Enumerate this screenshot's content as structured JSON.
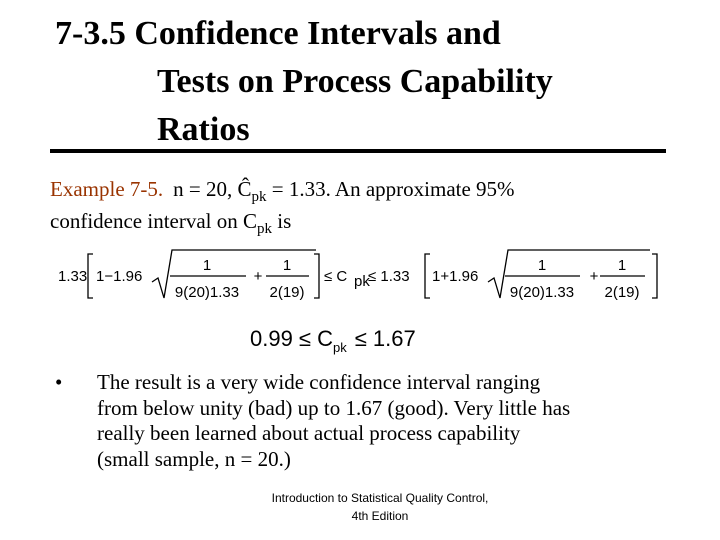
{
  "title": {
    "line1": "7-3.5 Confidence Intervals and",
    "line2": "Tests on Process Capability",
    "line3": "Ratios"
  },
  "example": {
    "label": "Example 7-5.",
    "line1_a": "n = 20, Ĉ",
    "line1_sub": "pk",
    "line1_b": " = 1.33.  An approximate 95%",
    "line2_a": "confidence interval on C",
    "line2_sub": "pk",
    "line2_b": " is"
  },
  "formula": {
    "coef": "1.33",
    "left_term": "1−1.96",
    "num1": "1",
    "den1": "9(20)1.33",
    "plus1": "+",
    "num2": "1",
    "den2": "2(19)",
    "middle": "≤ C",
    "middle_sub": "pk",
    "middle_b": "≤ 1.33",
    "right_term": "1+1.96",
    "num3": "1",
    "den3": "9(20)1.33",
    "plus2": "+",
    "num4": "1",
    "den4": "2(19)"
  },
  "result": {
    "a": "0.99 ≤ C",
    "sub": "pk",
    "b": "≤ 1.67"
  },
  "bullet": {
    "symbol": "•",
    "lines": [
      "The result is a very wide confidence interval ranging",
      "from below unity (bad) up to 1.67 (good).  Very little has",
      "really been learned about actual process capability",
      "(small sample, n = 20.)"
    ]
  },
  "footer": {
    "line1": "Introduction to Statistical Quality Control,",
    "line2": "4th Edition"
  }
}
